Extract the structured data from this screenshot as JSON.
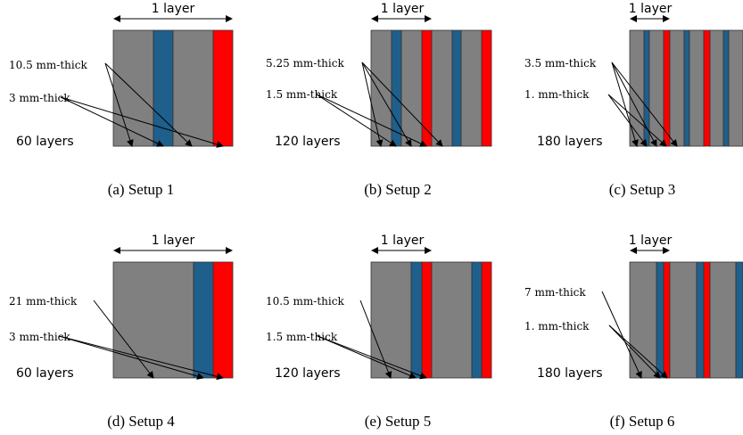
{
  "colors": {
    "gray": "#808080",
    "blue": "#1f5f8b",
    "red": "#ff0000",
    "outline": "#333333"
  },
  "panels": [
    {
      "caption": "(a) Setup 1",
      "layer_label": "1 layer",
      "count_label": "60 layers",
      "thick_label": "10.5 mm-thick",
      "thin_label": "3 mm-thick"
    },
    {
      "caption": "(b) Setup 2",
      "layer_label": "1 layer",
      "count_label": "120 layers",
      "thick_label": "5.25 mm-thick",
      "thin_label": "1.5 mm-thick"
    },
    {
      "caption": "(c) Setup 3",
      "layer_label": "1 layer",
      "count_label": "180 layers",
      "thick_label": "3.5 mm-thick",
      "thin_label": "1. mm-thick"
    },
    {
      "caption": "(d) Setup 4",
      "layer_label": "1 layer",
      "count_label": "60 layers",
      "thick_label": "21 mm-thick",
      "thin_label": "3 mm-thick"
    },
    {
      "caption": "(e) Setup 5",
      "layer_label": "1 layer",
      "count_label": "120 layers",
      "thick_label": "10.5 mm-thick",
      "thin_label": "1.5 mm-thick"
    },
    {
      "caption": "(f) Setup 6",
      "layer_label": "1 layer",
      "count_label": "180 layers",
      "thick_label": "7 mm-thick",
      "thin_label": "1. mm-thick"
    }
  ]
}
